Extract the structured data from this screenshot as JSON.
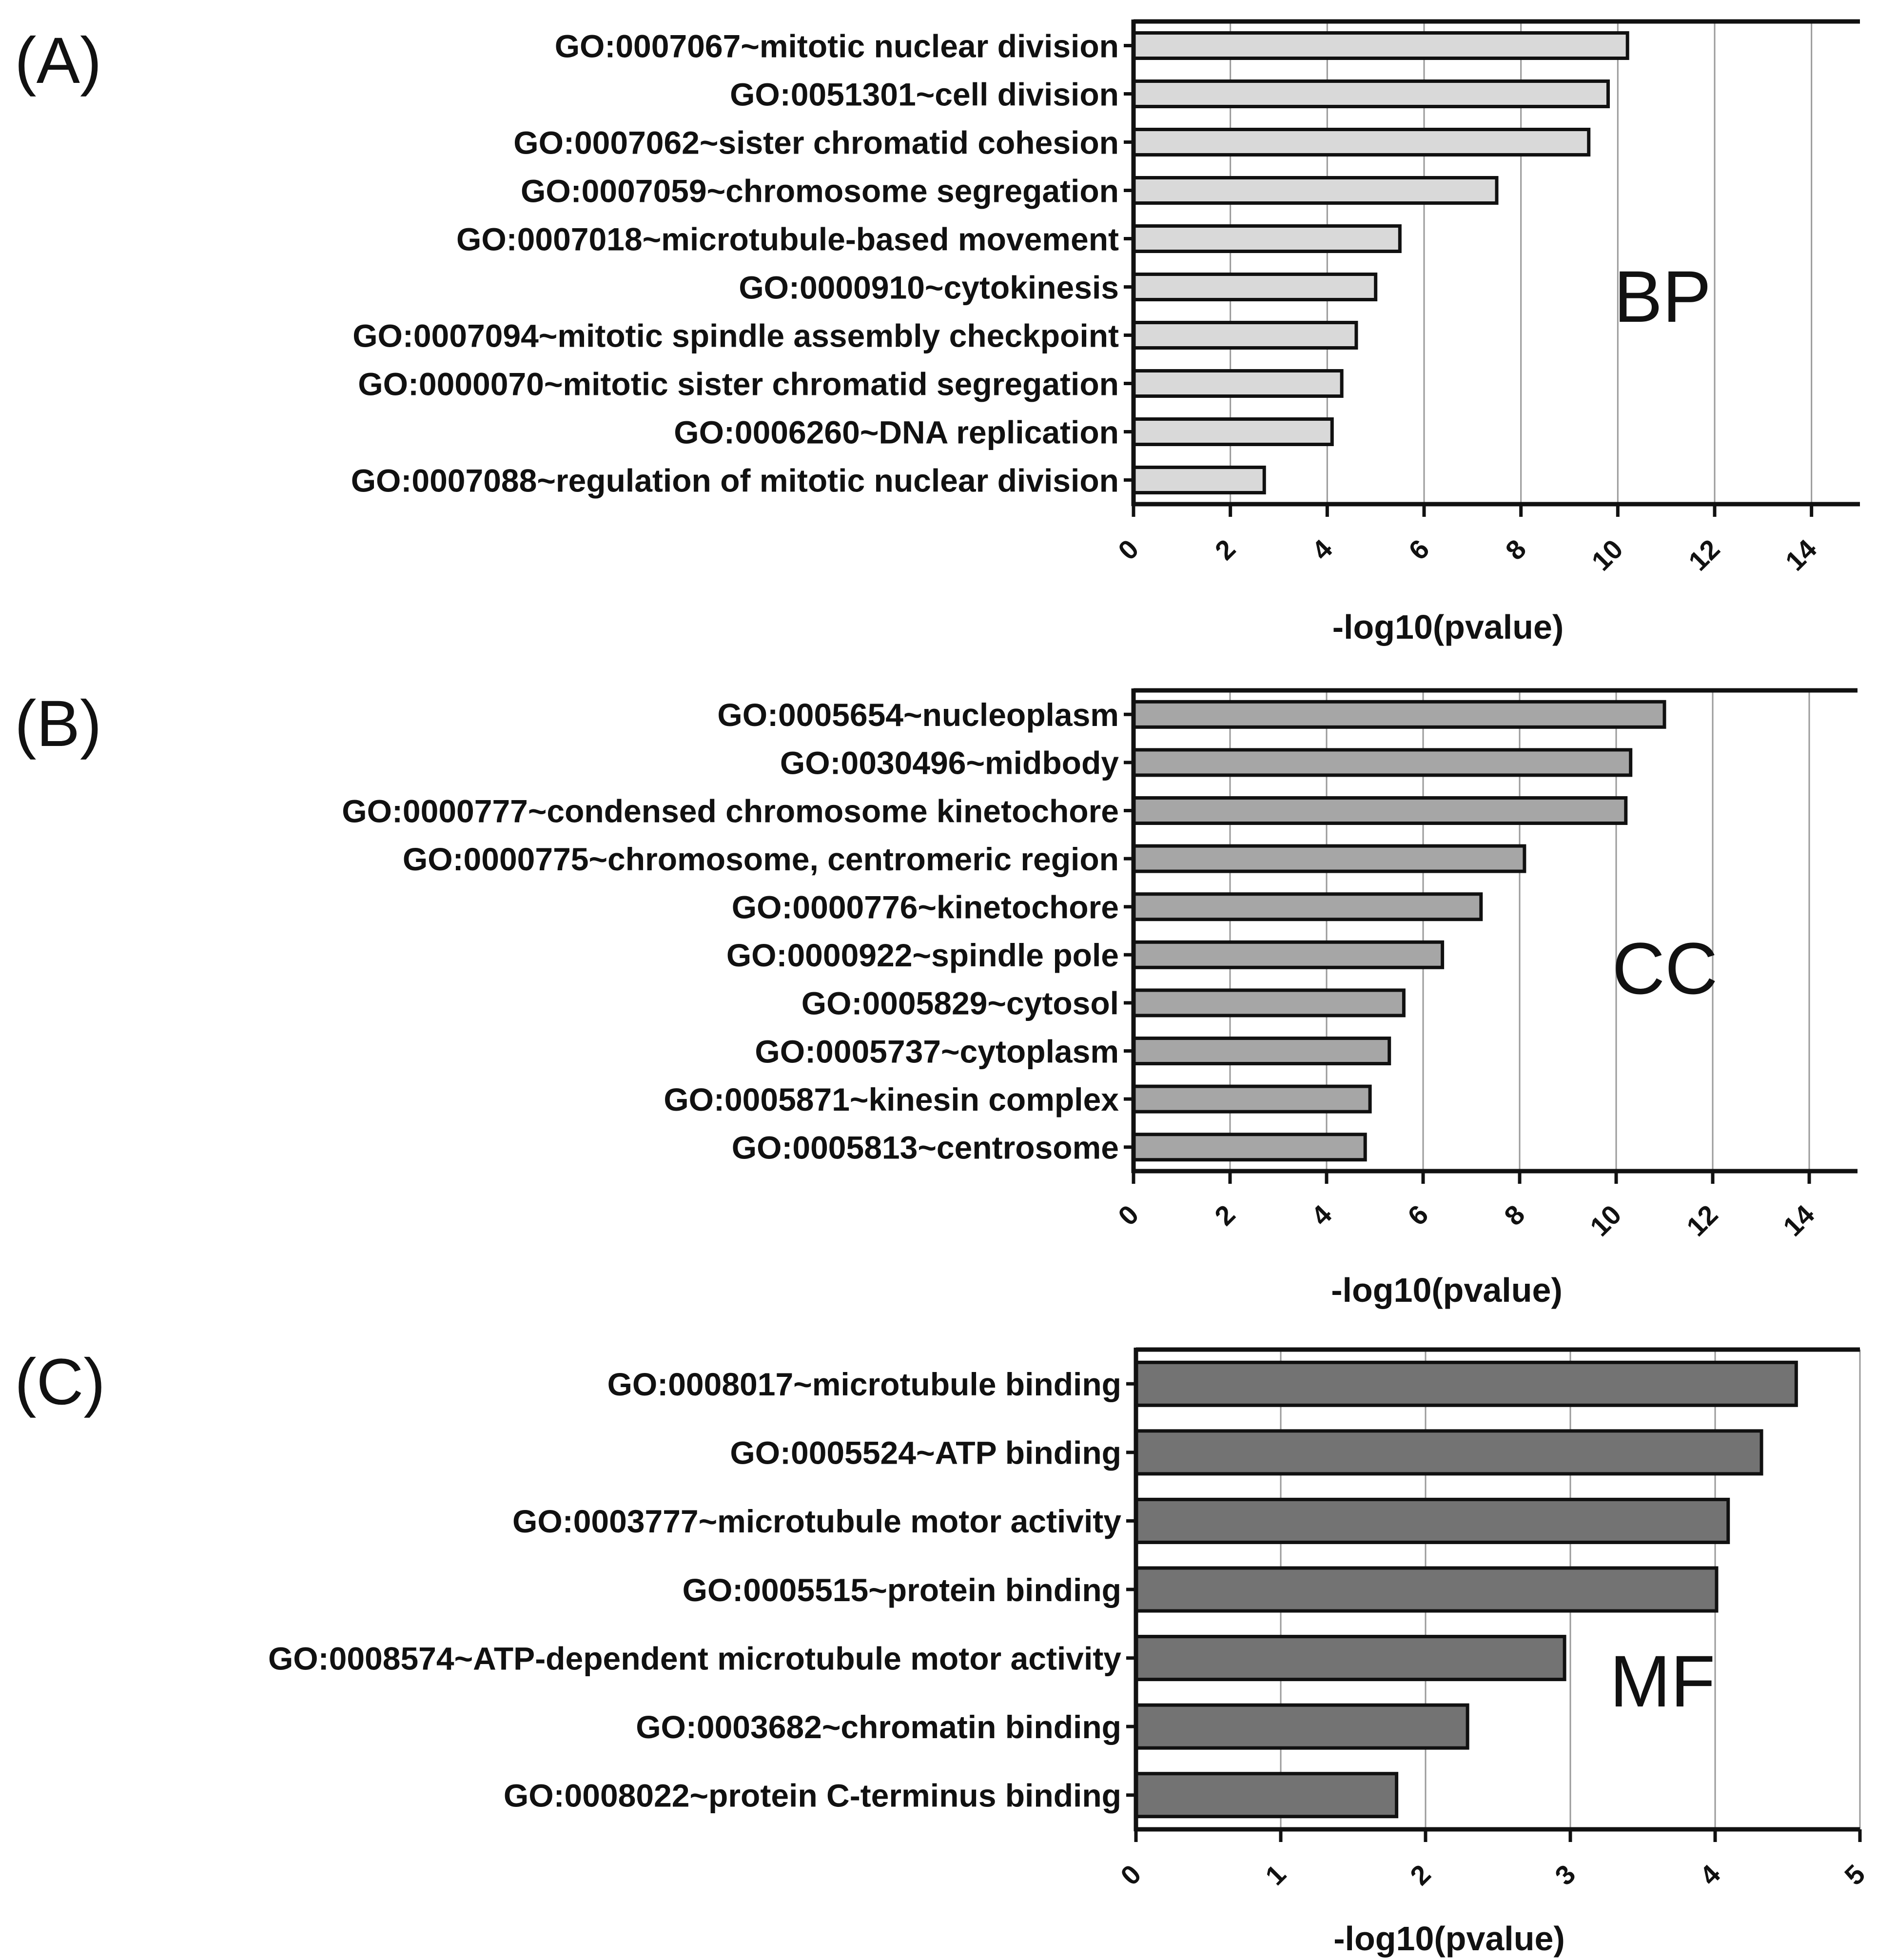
{
  "chart_data": [
    {
      "type": "bar",
      "orientation": "horizontal",
      "panel_letter": "(A)",
      "panel_tag": "BP",
      "xlabel": "-log10(pvalue)",
      "ylabel": "",
      "xlim": [
        0,
        15
      ],
      "xticks": [
        0,
        2,
        4,
        6,
        8,
        10,
        12,
        14
      ],
      "grid": "vertical",
      "bar_color": "#d9d9d9",
      "categories": [
        "GO:0007067~mitotic nuclear division",
        "GO:0051301~cell division",
        "GO:0007062~sister chromatid cohesion",
        "GO:0007059~chromosome segregation",
        "GO:0007018~microtubule-based movement",
        "GO:0000910~cytokinesis",
        "GO:0007094~mitotic spindle assembly checkpoint",
        "GO:0000070~mitotic sister chromatid segregation",
        "GO:0006260~DNA replication",
        "GO:0007088~regulation of mitotic nuclear division"
      ],
      "values": [
        10.2,
        9.8,
        9.4,
        7.5,
        5.5,
        5.0,
        4.6,
        4.3,
        4.1,
        2.7
      ]
    },
    {
      "type": "bar",
      "orientation": "horizontal",
      "panel_letter": "(B)",
      "panel_tag": "CC",
      "xlabel": "-log10(pvalue)",
      "ylabel": "",
      "xlim": [
        0,
        15
      ],
      "xticks": [
        0,
        2,
        4,
        6,
        8,
        10,
        12,
        14
      ],
      "grid": "vertical",
      "bar_color": "#a6a6a6",
      "categories": [
        "GO:0005654~nucleoplasm",
        "GO:0030496~midbody",
        "GO:0000777~condensed chromosome kinetochore",
        "GO:0000775~chromosome, centromeric region",
        "GO:0000776~kinetochore",
        "GO:0000922~spindle pole",
        "GO:0005829~cytosol",
        "GO:0005737~cytoplasm",
        "GO:0005871~kinesin complex",
        "GO:0005813~centrosome"
      ],
      "values": [
        11.0,
        10.3,
        10.2,
        8.1,
        7.2,
        6.4,
        5.6,
        5.3,
        4.9,
        4.8
      ]
    },
    {
      "type": "bar",
      "orientation": "horizontal",
      "panel_letter": "(C)",
      "panel_tag": "MF",
      "xlabel": "-log10(pvalue)",
      "ylabel": "",
      "xlim": [
        0,
        5
      ],
      "xticks": [
        0,
        1,
        2,
        3,
        4,
        5
      ],
      "grid": "vertical",
      "bar_color": "#737373",
      "categories": [
        "GO:0008017~microtubule binding",
        "GO:0005524~ATP binding",
        "GO:0003777~microtubule motor activity",
        "GO:0005515~protein binding",
        "GO:0008574~ATP-dependent microtubule motor activity",
        "GO:0003682~chromatin binding",
        "GO:0008022~protein C-terminus binding"
      ],
      "values": [
        4.56,
        4.32,
        4.09,
        4.01,
        2.96,
        2.29,
        1.8
      ]
    }
  ]
}
